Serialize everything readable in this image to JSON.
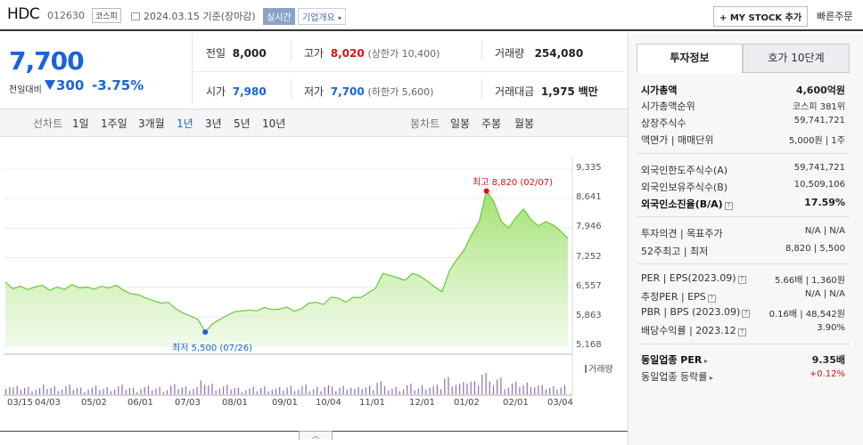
{
  "header": {
    "name": "HDC",
    "code": "012630",
    "market_badge": "코스피",
    "date": "2024.03.15 기준(장마감)",
    "realtime_badge": "실시간",
    "company_dropdown": "기업개요",
    "my_stock_button": "+ MY STOCK 추가",
    "quick_order": "빠른주문"
  },
  "quote": {
    "price": "7,700",
    "change_label": "전일대비",
    "change": "300",
    "change_pct": "-3.75%",
    "prev_close_label": "전일",
    "prev_close": "8,000",
    "high_label": "고가",
    "high": "8,020",
    "upper_limit": "(상한가 10,400)",
    "volume_label": "거래량",
    "volume": "254,080",
    "open_label": "시가",
    "open": "7,980",
    "low_label": "저가",
    "low": "7,700",
    "lower_limit": "(하한가 5,600)",
    "amount_label": "거래대금",
    "amount": "1,975",
    "amount_unit": "백만"
  },
  "chart_tabs": {
    "line_label": "선차트",
    "ranges": [
      "1일",
      "1주일",
      "3개월",
      "1년",
      "3년",
      "5년",
      "10년"
    ],
    "selected_range": "1년",
    "candle_label": "봉차트",
    "candles": [
      "일봉",
      "주봉",
      "월봉"
    ]
  },
  "chart_data": {
    "type": "area",
    "y_ticks": [
      "9,335",
      "8,641",
      "7,946",
      "7,252",
      "6,557",
      "5,863",
      "5,168"
    ],
    "ylim": [
      5168,
      9335
    ],
    "x_ticks": [
      "03/15",
      "04/03",
      "05/02",
      "06/01",
      "07/03",
      "08/01",
      "09/01",
      "10/04",
      "11/01",
      "12/01",
      "01/02",
      "02/01",
      "03/04"
    ],
    "high_annotation": "최고 8,820 (02/07)",
    "low_annotation": "최저 5,500 (07/26)",
    "volume_label": "거래량",
    "series": [
      {
        "values": [
          6680,
          6520,
          6580,
          6500,
          6560,
          6600,
          6480,
          6560,
          6500,
          6620,
          6540,
          6560,
          6510,
          6580,
          6540,
          6600,
          6480,
          6400,
          6380,
          6300,
          6240,
          6180,
          6200,
          6050,
          5950,
          5880,
          5800,
          5500,
          5700,
          5800,
          5900,
          5980,
          6000,
          6020,
          6000,
          6080,
          6030,
          6040,
          6090,
          5990,
          6050,
          6180,
          6200,
          6150,
          6320,
          6300,
          6200,
          6320,
          6310,
          6420,
          6530,
          6880,
          6830,
          6780,
          6720,
          6880,
          6820,
          6700,
          6560,
          6450,
          6950,
          7210,
          7440,
          7800,
          8100,
          8820,
          8560,
          8100,
          7950,
          8200,
          8400,
          8150,
          8000,
          8100,
          8020,
          7880,
          7700
        ]
      }
    ]
  },
  "side_panel": {
    "tab_active": "투자정보",
    "tab_inactive": "호가 10단계",
    "market_cap_label": "시가총액",
    "market_cap": "4,600억원",
    "rank_label": "시가총액순위",
    "rank": "코스피 381위",
    "shares_label": "상장주식수",
    "shares": "59,741,721",
    "par_label": "액면가 | 매매단위",
    "par": "5,000원 | 1주",
    "foreign_limit_label": "외국인한도주식수(A)",
    "foreign_limit": "59,741,721",
    "foreign_hold_label": "외국인보유주식수(B)",
    "foreign_hold": "10,509,106",
    "foreign_ratio_label": "외국인소진율(B/A)",
    "foreign_ratio": "17.59%",
    "opinion_label": "투자의견 | 목표주가",
    "opinion": "N/A | N/A",
    "w52_label": "52주최고 | 최저",
    "w52": "8,820 | 5,500",
    "per_label": "PER | EPS(2023.09)",
    "per": "5.66배 | 1,360원",
    "est_per_label": "추정PER | EPS",
    "est_per": "N/A | N/A",
    "pbr_label": "PBR | BPS (2023.09)",
    "pbr": "0.16배 | 48,542원",
    "div_label": "배당수익률 | 2023.12",
    "div": "3.90%",
    "sector_per_label": "동일업종 PER",
    "sector_per": "9.35배",
    "sector_chg_label": "동일업종 등락률",
    "sector_chg": "+0.12%"
  }
}
